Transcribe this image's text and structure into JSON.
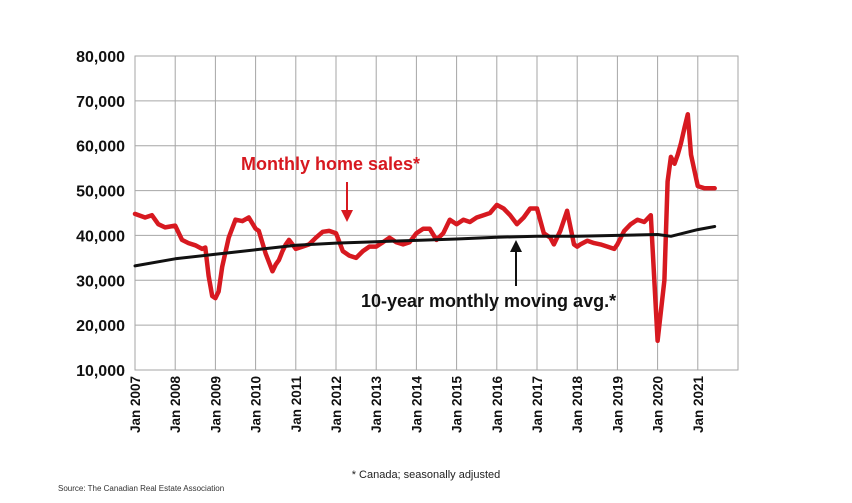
{
  "chart_data": {
    "type": "line",
    "title": "",
    "xlabel": "",
    "ylabel": "",
    "ylim": [
      10000,
      80000
    ],
    "yticks": [
      "80,000",
      "70,000",
      "60,000",
      "50,000",
      "40,000",
      "30,000",
      "20,000",
      "10,000"
    ],
    "ytick_values": [
      80000,
      70000,
      60000,
      50000,
      40000,
      30000,
      20000,
      10000
    ],
    "xlim": [
      2007.0,
      2022.0
    ],
    "xticks": [
      "Jan 2007",
      "Jan 2008",
      "Jan 2009",
      "Jan 2010",
      "Jan 2011",
      "Jan 2012",
      "Jan 2013",
      "Jan 2014",
      "Jan 2015",
      "Jan 2016",
      "Jan 2017",
      "Jan 2018",
      "Jan 2019",
      "Jan 2020",
      "Jan 2021"
    ],
    "xtick_values": [
      2007,
      2008,
      2009,
      2010,
      2011,
      2012,
      2013,
      2014,
      2015,
      2016,
      2017,
      2018,
      2019,
      2020,
      2021
    ],
    "grid": true,
    "colors": {
      "sales": "#d71920",
      "moving_avg": "#111111",
      "grid": "#a6a6a6"
    },
    "series": [
      {
        "name": "Monthly home sales",
        "color": "#d71920",
        "x": [
          2007.0,
          2007.25,
          2007.42,
          2007.58,
          2007.75,
          2008.0,
          2008.17,
          2008.33,
          2008.5,
          2008.67,
          2008.75,
          2008.83,
          2008.92,
          2009.0,
          2009.08,
          2009.17,
          2009.33,
          2009.5,
          2009.67,
          2009.83,
          2010.0,
          2010.08,
          2010.25,
          2010.42,
          2010.5,
          2010.58,
          2010.67,
          2010.75,
          2010.83,
          2011.0,
          2011.17,
          2011.33,
          2011.5,
          2011.67,
          2011.83,
          2012.0,
          2012.17,
          2012.33,
          2012.5,
          2012.67,
          2012.83,
          2013.0,
          2013.17,
          2013.33,
          2013.5,
          2013.67,
          2013.83,
          2014.0,
          2014.17,
          2014.33,
          2014.5,
          2014.67,
          2014.83,
          2015.0,
          2015.17,
          2015.33,
          2015.5,
          2015.67,
          2015.83,
          2016.0,
          2016.17,
          2016.33,
          2016.5,
          2016.67,
          2016.83,
          2017.0,
          2017.17,
          2017.33,
          2017.42,
          2017.58,
          2017.75,
          2017.92,
          2018.0,
          2018.08,
          2018.25,
          2018.42,
          2018.58,
          2018.75,
          2018.92,
          2019.0,
          2019.17,
          2019.33,
          2019.5,
          2019.67,
          2019.83,
          2020.0,
          2020.17,
          2020.25,
          2020.33,
          2020.42,
          2020.5,
          2020.58,
          2020.67,
          2020.75,
          2020.83,
          2021.0,
          2021.17,
          2021.25,
          2021.33,
          2021.42
        ],
        "y": [
          44800,
          44000,
          44500,
          42500,
          41800,
          42200,
          39000,
          38300,
          37800,
          37000,
          37300,
          31000,
          26500,
          26000,
          27500,
          33000,
          39500,
          43500,
          43200,
          44000,
          41500,
          41000,
          36000,
          32000,
          33500,
          34500,
          36500,
          38000,
          39000,
          37000,
          37500,
          38000,
          39500,
          40800,
          41000,
          40500,
          36500,
          35500,
          35000,
          36500,
          37500,
          37500,
          38500,
          39500,
          38500,
          38000,
          38500,
          40500,
          41500,
          41500,
          39000,
          40500,
          43500,
          42500,
          43500,
          43000,
          44000,
          44500,
          45000,
          46800,
          46000,
          44500,
          42500,
          44000,
          46000,
          46000,
          40500,
          39500,
          38000,
          41000,
          45500,
          38000,
          37500,
          38000,
          38800,
          38300,
          38000,
          37500,
          37000,
          38000,
          41000,
          42500,
          43500,
          43000,
          44500,
          16500,
          30000,
          52000,
          57500,
          56000,
          58000,
          60500,
          64000,
          67000,
          58000,
          51000,
          50500,
          50500,
          50500,
          50500
        ]
      },
      {
        "name": "10-year monthly moving avg.",
        "color": "#111111",
        "x": [
          2007.0,
          2008.0,
          2009.0,
          2010.0,
          2011.0,
          2012.0,
          2013.0,
          2014.0,
          2015.0,
          2016.0,
          2017.0,
          2018.0,
          2019.0,
          2020.0,
          2020.33,
          2021.0,
          2021.42
        ],
        "y": [
          33200,
          34800,
          35800,
          36800,
          37800,
          38300,
          38600,
          38900,
          39200,
          39600,
          39800,
          39800,
          40000,
          40200,
          39800,
          41300,
          42000
        ]
      }
    ],
    "annotations": {
      "sales_label": "Monthly home sales*",
      "avg_label": "10-year monthly moving avg.*"
    }
  },
  "footnote": "* Canada; seasonally adjusted",
  "source": "Source: The Canadian Real Estate Association"
}
